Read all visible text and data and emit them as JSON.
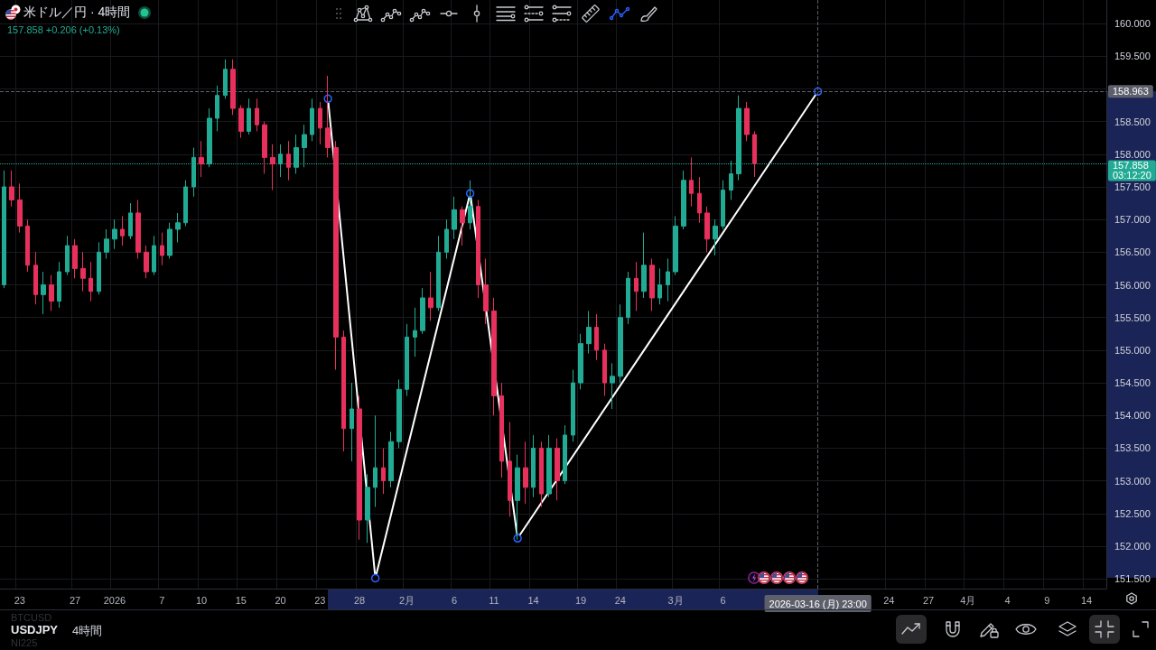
{
  "chart_data": {
    "type": "candlestick",
    "title": "米ドル／円 · 4時間",
    "subtitle": "157.858 +0.206 (+0.13%)",
    "categories": [
      null,
      null,
      "23",
      null,
      null,
      null,
      null,
      null,
      null,
      "27",
      null,
      null,
      null,
      null,
      "2026",
      null,
      null,
      null,
      null,
      null,
      "7",
      null,
      null,
      null,
      null,
      "10",
      null,
      null,
      null,
      null,
      "15",
      null,
      null,
      null,
      null,
      "20",
      null,
      null,
      null,
      null,
      "23",
      null,
      null,
      null,
      null,
      "28",
      null,
      null,
      null,
      null,
      null,
      "2月",
      null,
      null,
      null,
      null,
      null,
      "6",
      null,
      null,
      null,
      null,
      "11",
      null,
      null,
      null,
      null,
      "14",
      null,
      null,
      null,
      null,
      null,
      "19",
      null,
      null,
      null,
      null,
      "24",
      null,
      null,
      null,
      null,
      null,
      null,
      "3月",
      null,
      null,
      null,
      null,
      null,
      "6",
      null,
      null,
      null,
      null,
      null,
      null,
      null,
      null,
      null,
      null,
      null,
      "2026-03-16 (月) 23:00",
      null,
      null,
      null,
      null,
      null,
      null,
      null,
      null,
      "24",
      null,
      null,
      null,
      null,
      "27",
      null,
      null,
      null,
      null,
      "4月",
      null,
      null,
      null,
      null,
      "4",
      null,
      null,
      null,
      null,
      "9",
      null,
      null,
      null,
      null,
      "14",
      null,
      null
    ],
    "ohlc": [
      [
        156.0,
        157.75,
        155.95,
        157.5
      ],
      [
        157.5,
        157.75,
        157.2,
        157.3
      ],
      [
        157.3,
        157.55,
        156.8,
        156.9
      ],
      [
        156.9,
        157.0,
        156.2,
        156.3
      ],
      [
        156.3,
        156.5,
        155.7,
        155.85
      ],
      [
        155.85,
        156.2,
        155.55,
        156.0
      ],
      [
        156.0,
        156.15,
        155.6,
        155.75
      ],
      [
        155.75,
        156.35,
        155.65,
        156.2
      ],
      [
        156.2,
        156.75,
        156.15,
        156.6
      ],
      [
        156.6,
        156.7,
        156.1,
        156.25
      ],
      [
        156.25,
        156.5,
        155.9,
        156.1
      ],
      [
        156.1,
        156.35,
        155.75,
        155.9
      ],
      [
        155.9,
        156.65,
        155.85,
        156.5
      ],
      [
        156.5,
        156.85,
        156.4,
        156.7
      ],
      [
        156.7,
        157.0,
        156.55,
        156.85
      ],
      [
        156.85,
        157.05,
        156.6,
        156.75
      ],
      [
        156.75,
        157.25,
        156.7,
        157.1
      ],
      [
        157.1,
        157.3,
        156.4,
        156.5
      ],
      [
        156.5,
        156.6,
        156.1,
        156.2
      ],
      [
        156.2,
        156.75,
        156.15,
        156.6
      ],
      [
        156.6,
        156.8,
        156.3,
        156.45
      ],
      [
        156.45,
        156.95,
        156.4,
        156.85
      ],
      [
        156.85,
        157.1,
        156.65,
        156.95
      ],
      [
        156.95,
        157.6,
        156.9,
        157.5
      ],
      [
        157.5,
        158.1,
        157.35,
        157.95
      ],
      [
        157.95,
        158.2,
        157.65,
        157.85
      ],
      [
        157.85,
        158.7,
        157.8,
        158.55
      ],
      [
        158.55,
        159.05,
        158.35,
        158.9
      ],
      [
        158.9,
        159.45,
        158.85,
        159.3
      ],
      [
        159.3,
        159.45,
        158.6,
        158.7
      ],
      [
        158.7,
        158.75,
        158.25,
        158.35
      ],
      [
        158.35,
        158.85,
        158.3,
        158.7
      ],
      [
        158.7,
        158.85,
        158.35,
        158.45
      ],
      [
        158.45,
        158.5,
        157.7,
        157.95
      ],
      [
        157.95,
        158.15,
        157.45,
        157.85
      ],
      [
        157.85,
        158.15,
        157.65,
        158.0
      ],
      [
        158.0,
        158.2,
        157.6,
        157.8
      ],
      [
        157.8,
        158.3,
        157.7,
        158.1
      ],
      [
        158.1,
        158.45,
        157.8,
        158.3
      ],
      [
        158.3,
        158.85,
        158.2,
        158.7
      ],
      [
        158.7,
        158.8,
        158.15,
        158.4
      ],
      [
        158.4,
        159.2,
        157.95,
        158.1
      ],
      [
        158.1,
        158.2,
        154.7,
        155.2
      ],
      [
        155.2,
        155.3,
        153.45,
        153.8
      ],
      [
        153.8,
        154.5,
        153.3,
        154.1
      ],
      [
        154.1,
        154.3,
        152.1,
        152.4
      ],
      [
        152.4,
        153.1,
        152.05,
        152.9
      ],
      [
        152.9,
        154.0,
        152.6,
        153.2
      ],
      [
        153.2,
        153.5,
        152.8,
        153.0
      ],
      [
        153.0,
        153.75,
        152.9,
        153.6
      ],
      [
        153.6,
        154.55,
        153.5,
        154.4
      ],
      [
        154.4,
        155.4,
        154.3,
        155.2
      ],
      [
        155.2,
        155.65,
        154.9,
        155.3
      ],
      [
        155.3,
        155.95,
        155.25,
        155.8
      ],
      [
        155.8,
        156.2,
        155.45,
        155.65
      ],
      [
        155.65,
        156.75,
        155.6,
        156.5
      ],
      [
        156.5,
        157.0,
        156.4,
        156.85
      ],
      [
        156.85,
        157.35,
        156.7,
        157.15
      ],
      [
        157.15,
        157.2,
        156.6,
        156.95
      ],
      [
        156.95,
        157.6,
        156.85,
        157.2
      ],
      [
        157.2,
        157.3,
        155.8,
        156.0
      ],
      [
        156.0,
        156.4,
        155.4,
        155.6
      ],
      [
        155.6,
        155.8,
        154.0,
        154.3
      ],
      [
        154.3,
        154.5,
        153.05,
        153.3
      ],
      [
        153.3,
        153.9,
        152.45,
        152.7
      ],
      [
        152.7,
        153.4,
        152.1,
        153.2
      ],
      [
        153.2,
        153.6,
        152.65,
        152.9
      ],
      [
        152.9,
        153.7,
        152.75,
        153.5
      ],
      [
        153.5,
        153.6,
        152.6,
        152.8
      ],
      [
        152.8,
        153.7,
        152.75,
        153.5
      ],
      [
        153.5,
        153.65,
        152.7,
        153.0
      ],
      [
        153.0,
        153.85,
        152.95,
        153.7
      ],
      [
        153.7,
        154.7,
        153.6,
        154.5
      ],
      [
        154.5,
        155.25,
        154.4,
        155.1
      ],
      [
        155.1,
        155.6,
        154.95,
        155.35
      ],
      [
        155.35,
        155.55,
        154.85,
        155.0
      ],
      [
        155.0,
        155.1,
        154.3,
        154.5
      ],
      [
        154.5,
        154.8,
        154.1,
        154.6
      ],
      [
        154.6,
        155.7,
        154.5,
        155.5
      ],
      [
        155.5,
        156.2,
        155.4,
        156.1
      ],
      [
        156.1,
        156.35,
        155.6,
        155.9
      ],
      [
        155.9,
        156.8,
        155.8,
        156.3
      ],
      [
        156.3,
        156.4,
        155.6,
        155.8
      ],
      [
        155.8,
        156.25,
        155.7,
        156.0
      ],
      [
        156.0,
        156.4,
        155.75,
        156.2
      ],
      [
        156.2,
        157.05,
        156.15,
        156.9
      ],
      [
        156.9,
        157.75,
        156.85,
        157.6
      ],
      [
        157.6,
        157.95,
        157.2,
        157.4
      ],
      [
        157.4,
        157.65,
        156.95,
        157.1
      ],
      [
        157.1,
        157.2,
        156.5,
        156.7
      ],
      [
        156.7,
        157.0,
        156.45,
        156.9
      ],
      [
        156.9,
        157.6,
        156.85,
        157.45
      ],
      [
        157.45,
        157.9,
        157.3,
        157.7
      ],
      [
        157.7,
        158.9,
        157.6,
        158.7
      ],
      [
        158.7,
        158.8,
        158.2,
        158.3
      ],
      [
        158.3,
        158.35,
        157.65,
        157.858
      ],
      null,
      null,
      null,
      null,
      null,
      null,
      null,
      null,
      null,
      null,
      null,
      null,
      null,
      null,
      null,
      null,
      null,
      null,
      null,
      null,
      null,
      null,
      null,
      null,
      null,
      null,
      null,
      null,
      null,
      null,
      null,
      null,
      null,
      null,
      null,
      null,
      null,
      null,
      null,
      null,
      null,
      null,
      null,
      null
    ],
    "series": [
      {
        "type": "line",
        "color": "#ffffff",
        "marker": "circle",
        "values": [
          null,
          null,
          null,
          null,
          null,
          null,
          null,
          null,
          null,
          null,
          null,
          null,
          null,
          null,
          null,
          null,
          null,
          null,
          null,
          null,
          null,
          null,
          null,
          null,
          null,
          null,
          null,
          null,
          null,
          null,
          null,
          null,
          null,
          null,
          null,
          null,
          null,
          null,
          null,
          null,
          null,
          158.85,
          null,
          null,
          null,
          null,
          null,
          151.51,
          null,
          null,
          null,
          null,
          null,
          null,
          null,
          null,
          null,
          null,
          null,
          157.4,
          null,
          null,
          null,
          null,
          null,
          152.12,
          null,
          null,
          null,
          null,
          null,
          null,
          null,
          null,
          null,
          null,
          null,
          null,
          null,
          null,
          null,
          null,
          null,
          null,
          null,
          null,
          null,
          null,
          null,
          null,
          null,
          null,
          null,
          null,
          null,
          null,
          null,
          null,
          null,
          null,
          null,
          null,
          null,
          158.96,
          null,
          null,
          null,
          null,
          null,
          null,
          null,
          null,
          null,
          null,
          null,
          null,
          null,
          null,
          null,
          null,
          null,
          null,
          null,
          null,
          null,
          null,
          null,
          null,
          null,
          null,
          null,
          null,
          null,
          null,
          null,
          null,
          null,
          null,
          null,
          null
        ]
      }
    ],
    "ylim": [
      151.35,
      160.36
    ],
    "yticks": [
      {
        "value": 151.5,
        "label": "151.500"
      },
      {
        "value": 152.0,
        "label": "152.000"
      },
      {
        "value": 152.5,
        "label": "152.500"
      },
      {
        "value": 153.0,
        "label": "153.000"
      },
      {
        "value": 153.5,
        "label": "153.500"
      },
      {
        "value": 154.0,
        "label": "154.000"
      },
      {
        "value": 154.5,
        "label": "154.500"
      },
      {
        "value": 155.0,
        "label": "155.000"
      },
      {
        "value": 155.5,
        "label": "155.500"
      },
      {
        "value": 156.0,
        "label": "156.000"
      },
      {
        "value": 156.5,
        "label": "156.500"
      },
      {
        "value": 157.0,
        "label": "157.000"
      },
      {
        "value": 157.5,
        "label": "157.500"
      },
      {
        "value": 158.0,
        "label": "158.000"
      },
      {
        "value": 158.5,
        "label": "158.500"
      },
      {
        "value": 159.0,
        "label": null
      },
      {
        "value": 159.5,
        "label": "159.500"
      },
      {
        "value": 160.0,
        "label": "160.000"
      }
    ],
    "grid": true,
    "ref_lines": [
      {
        "axis": "y",
        "value": 158.963,
        "label": "158.963",
        "color": "#5d606b",
        "line_style": "dashed"
      },
      {
        "axis": "x",
        "value": "2026-03-16 (月) 23:00",
        "color": "#5d606b",
        "line_style": "dashed"
      },
      {
        "axis": "y",
        "value": 157.858,
        "label": "157.858\n03:12:20",
        "color": "#22ab94",
        "line_style": "dotted"
      }
    ],
    "annotations": [
      "BTCUSD",
      "USDJPY",
      "4時間",
      "NI225"
    ]
  }
}
